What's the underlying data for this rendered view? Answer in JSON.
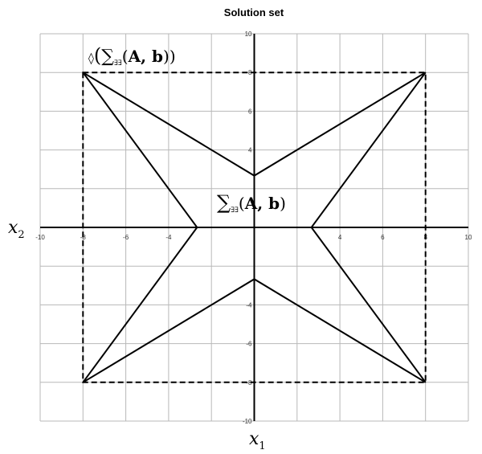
{
  "chart_data": {
    "type": "line",
    "title": "Solution set",
    "xlabel": "x1",
    "ylabel": "x2",
    "xlim": [
      -10,
      10
    ],
    "ylim": [
      -10,
      10
    ],
    "grid": true,
    "grid_step": 2,
    "x_ticks": [
      "-10",
      "-8",
      "-6",
      "-4",
      "4",
      "6",
      "8",
      "10"
    ],
    "y_ticks": [
      "10",
      "8",
      "6",
      "4",
      "-4",
      "-6",
      "-8",
      "-10"
    ],
    "star_polygon": [
      [
        -8,
        8
      ],
      [
        0,
        2.67
      ],
      [
        8,
        8
      ],
      [
        2.67,
        0
      ],
      [
        8,
        -8
      ],
      [
        0,
        -2.67
      ],
      [
        -8,
        -8
      ],
      [
        -2.67,
        0
      ]
    ],
    "box_dashed": [
      [
        -8,
        8
      ],
      [
        8,
        8
      ],
      [
        8,
        -8
      ],
      [
        -8,
        -8
      ]
    ],
    "annotations": {
      "outer": {
        "prefix": "◊",
        "sym": "∑",
        "sub": "∃∃",
        "args": "A, b"
      },
      "inner": {
        "sym": "∑",
        "sub": "∃∃",
        "args": "A, b"
      }
    },
    "axis_label_x": {
      "base": "x",
      "sub": "1"
    },
    "axis_label_y": {
      "base": "x",
      "sub": "2"
    }
  }
}
